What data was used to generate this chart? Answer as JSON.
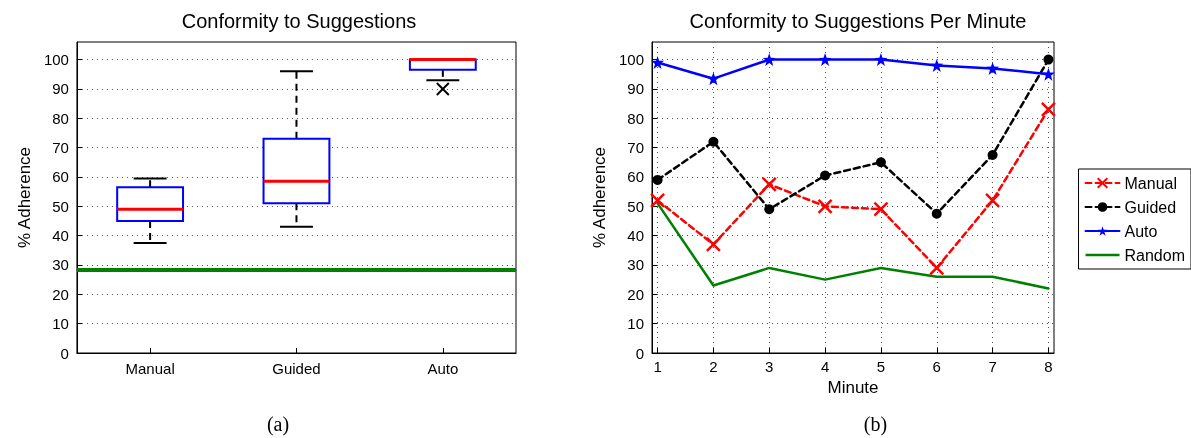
{
  "chart_data": [
    {
      "type": "box",
      "title": "Conformity to Suggestions",
      "ylabel": "% Adherence",
      "categories": [
        "Manual",
        "Guided",
        "Auto"
      ],
      "boxes": [
        {
          "low": 37.5,
          "q1": 45,
          "median": 49,
          "q3": 56.5,
          "high": 59.5
        },
        {
          "low": 43,
          "q1": 51,
          "median": 58.5,
          "q3": 73,
          "high": 96
        },
        {
          "low": 93,
          "q1": 96.5,
          "median": 100,
          "q3": 100,
          "high": 100,
          "outliers": [
            90
          ]
        }
      ],
      "ylim": [
        0,
        106
      ],
      "yticks": [
        0,
        10,
        20,
        30,
        40,
        50,
        60,
        70,
        80,
        90,
        100
      ],
      "grid": "y",
      "ref_lines": [
        {
          "axis": "y",
          "value": 28.5,
          "color": "#008000"
        }
      ],
      "annotations": [
        "(a)"
      ]
    },
    {
      "type": "line",
      "title": "Conformity to Suggestions Per Minute",
      "xlabel": "Minute",
      "ylabel": "% Adherence",
      "x": [
        1,
        2,
        3,
        4,
        5,
        6,
        7,
        8
      ],
      "xlim": [
        0.9,
        8.1
      ],
      "xticks": [
        1,
        2,
        3,
        4,
        5,
        6,
        7,
        8
      ],
      "ylim": [
        0,
        106
      ],
      "yticks": [
        0,
        10,
        20,
        30,
        40,
        50,
        60,
        70,
        80,
        90,
        100
      ],
      "grid": true,
      "legend": "right",
      "series": [
        {
          "name": "Manual",
          "color": "#ff0000",
          "line_style": "dashed",
          "marker": "cross",
          "values": [
            52,
            37,
            57.5,
            50,
            49,
            29,
            52,
            83
          ]
        },
        {
          "name": "Guided",
          "color": "#000000",
          "line_style": "dashed",
          "marker": "circle",
          "values": [
            59,
            72,
            49,
            60.5,
            65,
            47.5,
            67.5,
            100
          ]
        },
        {
          "name": "Auto",
          "color": "#0000ff",
          "line_style": "solid",
          "marker": "star",
          "values": [
            99,
            93.5,
            100,
            100,
            100,
            98,
            97,
            95
          ]
        },
        {
          "name": "Random",
          "color": "#008000",
          "line_style": "solid",
          "marker": "none",
          "values": [
            51,
            23,
            29,
            25,
            29,
            26,
            26,
            22
          ]
        }
      ],
      "annotations": [
        "(b)"
      ]
    }
  ]
}
